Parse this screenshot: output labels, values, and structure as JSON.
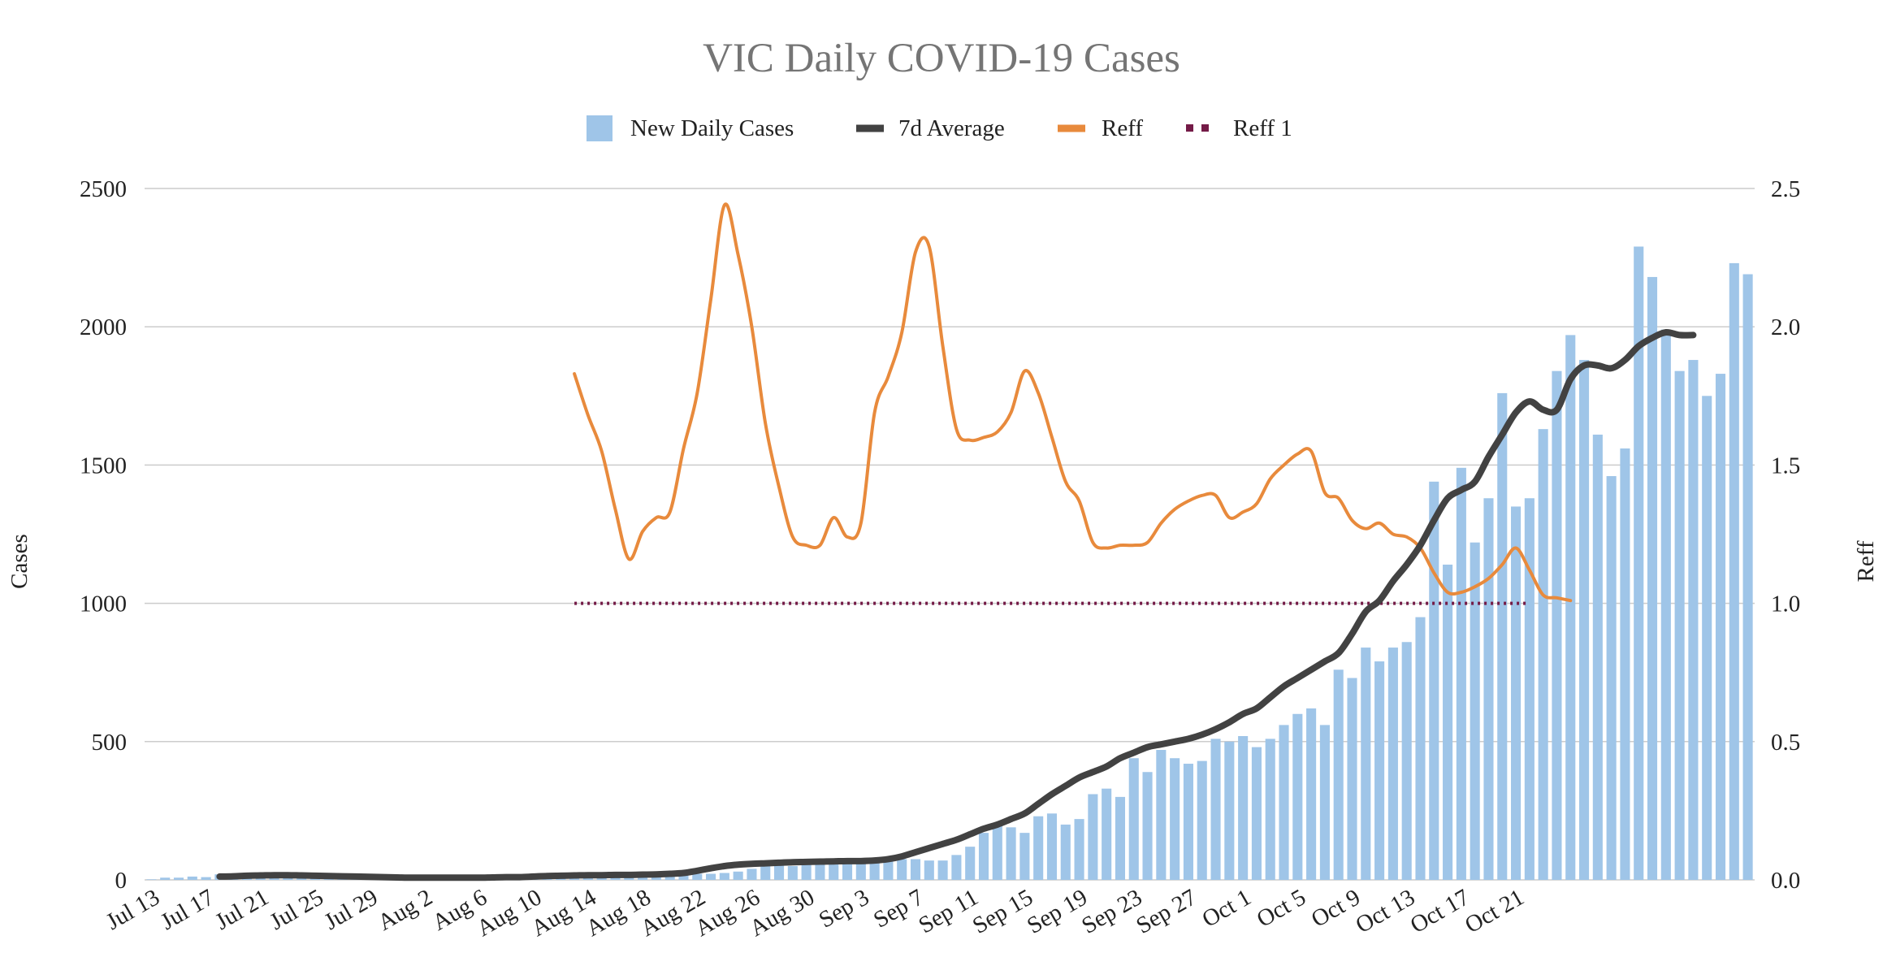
{
  "chart_data": {
    "type": "bar",
    "title": "VIC Daily COVID-19 Cases",
    "ylabel": "Cases",
    "y2label": "Reff",
    "ylim": [
      0,
      2500
    ],
    "y2lim": [
      0,
      2.5
    ],
    "yticks": [
      "0",
      "500",
      "1000",
      "1500",
      "2000",
      "2500"
    ],
    "y2ticks": [
      "0.0",
      "0.5",
      "1.0",
      "1.5",
      "2.0",
      "2.5"
    ],
    "legend_position": "top-center",
    "grid": true,
    "start_date": "Jul 13",
    "x_tick_labels": [
      "Jul 13",
      "Jul 17",
      "Jul 21",
      "Jul 25",
      "Jul 29",
      "Aug 2",
      "Aug 6",
      "Aug 10",
      "Aug 14",
      "Aug 18",
      "Aug 22",
      "Aug 26",
      "Aug 30",
      "Sep 3",
      "Sep 7",
      "Sep 11",
      "Sep 15",
      "Sep 19",
      "Sep 23",
      "Sep 27",
      "Oct 1",
      "Oct 5",
      "Oct 9",
      "Oct 13",
      "Oct 17",
      "Oct 21"
    ],
    "x_tick_interval_days": 4,
    "series": [
      {
        "name": "New Daily Cases",
        "type": "bar",
        "axis": "left",
        "color": "#9fc5e8",
        "values": [
          2,
          8,
          8,
          12,
          10,
          20,
          15,
          15,
          18,
          12,
          10,
          10,
          8,
          8,
          5,
          5,
          5,
          5,
          3,
          3,
          3,
          3,
          2,
          2,
          3,
          2,
          5,
          8,
          10,
          12,
          12,
          10,
          12,
          12,
          15,
          15,
          18,
          18,
          20,
          20,
          22,
          22,
          25,
          30,
          40,
          50,
          55,
          50,
          60,
          60,
          60,
          60,
          65,
          70,
          75,
          75,
          75,
          70,
          70,
          90,
          120,
          170,
          200,
          190,
          170,
          230,
          240,
          200,
          220,
          310,
          330,
          300,
          440,
          390,
          470,
          440,
          420,
          430,
          510,
          500,
          520,
          480,
          510,
          560,
          600,
          620,
          560,
          760,
          730,
          840,
          790,
          840,
          860,
          950,
          1440,
          1140,
          1490,
          1220,
          1380,
          1760,
          1350,
          1380,
          1630,
          1840,
          1970,
          1880,
          1610,
          1460,
          1560,
          2290,
          2180,
          1990,
          1840,
          1880,
          1750,
          1830,
          2230,
          2190
        ]
      },
      {
        "name": "7d Average",
        "type": "line",
        "axis": "left",
        "color": "#424242",
        "start_day": 5,
        "values": [
          12,
          13,
          15,
          16,
          17,
          17,
          16,
          15,
          14,
          13,
          12,
          11,
          10,
          9,
          8,
          8,
          8,
          8,
          8,
          8,
          9,
          10,
          10,
          12,
          14,
          15,
          16,
          17,
          17,
          18,
          18,
          19,
          20,
          22,
          25,
          33,
          42,
          50,
          55,
          58,
          60,
          62,
          64,
          65,
          66,
          67,
          68,
          68,
          70,
          75,
          85,
          100,
          115,
          130,
          145,
          165,
          185,
          200,
          220,
          240,
          275,
          310,
          340,
          370,
          390,
          410,
          440,
          460,
          480,
          490,
          500,
          510,
          525,
          545,
          570,
          600,
          620,
          660,
          700,
          730,
          760,
          790,
          820,
          890,
          970,
          1010,
          1080,
          1140,
          1210,
          1300,
          1380,
          1410,
          1440,
          1530,
          1610,
          1690,
          1730,
          1700,
          1700,
          1810,
          1860,
          1860,
          1850,
          1880,
          1930,
          1960,
          1980,
          1970,
          1970
        ]
      },
      {
        "name": "Reff",
        "type": "line",
        "axis": "right",
        "color": "#e88a3c",
        "start_day": 31,
        "values": [
          1.83,
          1.68,
          1.55,
          1.34,
          1.16,
          1.26,
          1.31,
          1.33,
          1.56,
          1.76,
          2.1,
          2.44,
          2.26,
          2.0,
          1.65,
          1.42,
          1.24,
          1.21,
          1.21,
          1.31,
          1.24,
          1.29,
          1.69,
          1.82,
          1.98,
          2.27,
          2.29,
          1.93,
          1.63,
          1.59,
          1.6,
          1.62,
          1.69,
          1.84,
          1.76,
          1.6,
          1.44,
          1.37,
          1.22,
          1.2,
          1.21,
          1.21,
          1.22,
          1.29,
          1.34,
          1.37,
          1.39,
          1.39,
          1.31,
          1.33,
          1.36,
          1.45,
          1.5,
          1.54,
          1.55,
          1.4,
          1.38,
          1.3,
          1.27,
          1.29,
          1.25,
          1.24,
          1.2,
          1.11,
          1.04,
          1.04,
          1.06,
          1.09,
          1.14,
          1.2,
          1.12,
          1.03,
          1.02,
          1.01
        ]
      },
      {
        "name": "Reff 1",
        "type": "line",
        "style": "dotted",
        "axis": "right",
        "color": "#741b47",
        "start_day": 31,
        "end_day": 101,
        "value": 1.0
      }
    ]
  }
}
